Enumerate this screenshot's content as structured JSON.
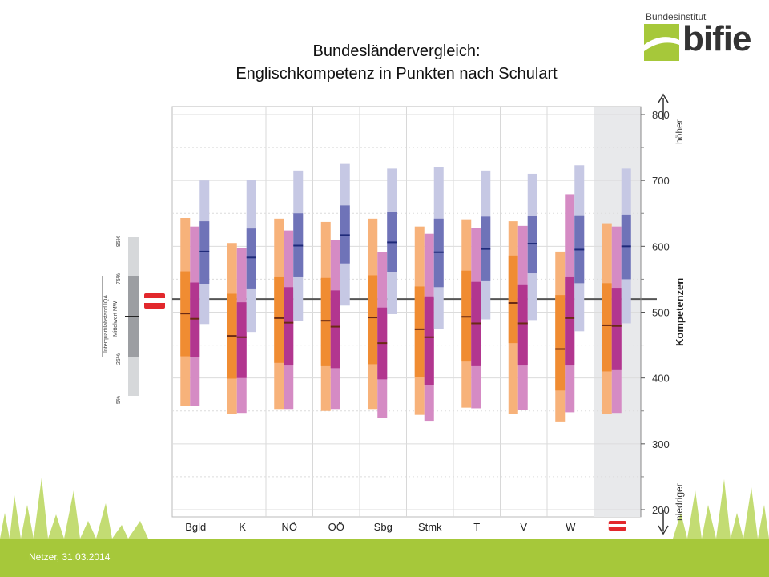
{
  "title_line1": "Bundesländervergleich:",
  "title_line2": "Englischkompetenz in Punkten nach Schulart",
  "logo": {
    "small": "Bundesinstitut",
    "big": "bifie"
  },
  "footer": "Netzer, 31.03.2014",
  "colors": {
    "background_panel": "#ffffff",
    "austria_panel": "#e8e9eb",
    "grass": "#a6c83a",
    "apsorange_light": "#f7b27a",
    "apsorange_dark": "#f08c32",
    "ahspink_light": "#d58bc4",
    "ahspink_dark": "#b2368f",
    "bhspurple_light": "#c6c8e4",
    "bhspurple_dark": "#6f73b8",
    "flag_red": "#e2282c"
  },
  "legend_scale": {
    "labels": [
      "95%",
      "75%",
      "25%",
      "5%"
    ],
    "iqa": "Interquartilabstand IQA",
    "mw": "Mittelwert MW"
  },
  "chart_data": {
    "type": "box",
    "ylim": [
      200,
      800
    ],
    "yticks": [
      "200",
      "300",
      "400",
      "500",
      "600",
      "700",
      "800"
    ],
    "ylabel": "Kompetenzen",
    "y_arrow_top": "höher",
    "y_arrow_bottom": "niedriger",
    "reference_line": 520,
    "categories": [
      "Bgld",
      "K",
      "NÖ",
      "OÖ",
      "Sbg",
      "Stmk",
      "T",
      "V",
      "W",
      "AT"
    ],
    "category_labels_text": [
      "Bgld",
      "K",
      "NÖ",
      "OÖ",
      "Sbg",
      "Stmk",
      "T",
      "V",
      "W",
      ""
    ],
    "series": [
      {
        "color_key": "apsorange",
        "boxes": [
          {
            "p5": 358,
            "p25": 433,
            "mean": 498,
            "p75": 562,
            "p95": 643
          },
          {
            "p5": 345,
            "p25": 399,
            "mean": 464,
            "p75": 528,
            "p95": 605
          },
          {
            "p5": 353,
            "p25": 423,
            "mean": 491,
            "p75": 553,
            "p95": 642
          },
          {
            "p5": 350,
            "p25": 418,
            "mean": 487,
            "p75": 552,
            "p95": 637
          },
          {
            "p5": 353,
            "p25": 421,
            "mean": 492,
            "p75": 556,
            "p95": 642
          },
          {
            "p5": 344,
            "p25": 402,
            "mean": 474,
            "p75": 539,
            "p95": 630
          },
          {
            "p5": 355,
            "p25": 425,
            "mean": 493,
            "p75": 563,
            "p95": 641
          },
          {
            "p5": 346,
            "p25": 453,
            "mean": 514,
            "p75": 586,
            "p95": 638
          },
          {
            "p5": 334,
            "p25": 381,
            "mean": 444,
            "p75": 526,
            "p95": 592
          },
          {
            "p5": 346,
            "p25": 410,
            "mean": 480,
            "p75": 544,
            "p95": 635
          }
        ]
      },
      {
        "color_key": "ahspink",
        "boxes": [
          {
            "p5": 358,
            "p25": 432,
            "mean": 490,
            "p75": 545,
            "p95": 630
          },
          {
            "p5": 347,
            "p25": 400,
            "mean": 462,
            "p75": 515,
            "p95": 597
          },
          {
            "p5": 353,
            "p25": 419,
            "mean": 484,
            "p75": 538,
            "p95": 624
          },
          {
            "p5": 353,
            "p25": 415,
            "mean": 478,
            "p75": 533,
            "p95": 609
          },
          {
            "p5": 339,
            "p25": 398,
            "mean": 453,
            "p75": 507,
            "p95": 591
          },
          {
            "p5": 335,
            "p25": 389,
            "mean": 462,
            "p75": 524,
            "p95": 619
          },
          {
            "p5": 354,
            "p25": 418,
            "mean": 483,
            "p75": 546,
            "p95": 628
          },
          {
            "p5": 352,
            "p25": 419,
            "mean": 483,
            "p75": 541,
            "p95": 631
          },
          {
            "p5": 348,
            "p25": 419,
            "mean": 491,
            "p75": 553,
            "p95": 679
          },
          {
            "p5": 347,
            "p25": 412,
            "mean": 479,
            "p75": 537,
            "p95": 630
          }
        ]
      },
      {
        "color_key": "bhspurple",
        "boxes": [
          {
            "p5": 482,
            "p25": 543,
            "mean": 592,
            "p75": 638,
            "p95": 700
          },
          {
            "p5": 470,
            "p25": 536,
            "mean": 583,
            "p75": 627,
            "p95": 701
          },
          {
            "p5": 487,
            "p25": 553,
            "mean": 601,
            "p75": 650,
            "p95": 715
          },
          {
            "p5": 510,
            "p25": 574,
            "mean": 617,
            "p75": 662,
            "p95": 725
          },
          {
            "p5": 497,
            "p25": 561,
            "mean": 606,
            "p75": 652,
            "p95": 718
          },
          {
            "p5": 475,
            "p25": 538,
            "mean": 591,
            "p75": 642,
            "p95": 720
          },
          {
            "p5": 489,
            "p25": 547,
            "mean": 596,
            "p75": 645,
            "p95": 715
          },
          {
            "p5": 488,
            "p25": 559,
            "mean": 604,
            "p75": 646,
            "p95": 710
          },
          {
            "p5": 471,
            "p25": 544,
            "mean": 595,
            "p75": 647,
            "p95": 723
          },
          {
            "p5": 483,
            "p25": 550,
            "mean": 600,
            "p75": 648,
            "p95": 718
          }
        ]
      }
    ]
  }
}
